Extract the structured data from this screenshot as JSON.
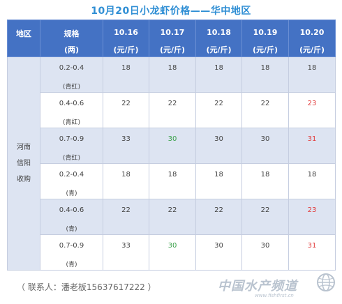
{
  "title": "10月20日小龙虾价格——华中地区",
  "header": {
    "region": "地区",
    "spec_line1": "规格",
    "spec_line2": "(两)",
    "dates": [
      "10.16",
      "10.17",
      "10.18",
      "10.19",
      "10.20"
    ],
    "unit": "(元/斤)"
  },
  "region": [
    "河南",
    "信阳",
    "收购"
  ],
  "rows": [
    {
      "spec": "0.2-0.4",
      "sub": "(青红)",
      "values": [
        "18",
        "18",
        "18",
        "18",
        "18"
      ],
      "colors": [
        "",
        "",
        "",
        "",
        ""
      ]
    },
    {
      "spec": "0.4-0.6",
      "sub": "(青红)",
      "values": [
        "22",
        "22",
        "22",
        "22",
        "23"
      ],
      "colors": [
        "",
        "",
        "",
        "",
        "red"
      ]
    },
    {
      "spec": "0.7-0.9",
      "sub": "(青红)",
      "values": [
        "33",
        "30",
        "30",
        "30",
        "31"
      ],
      "colors": [
        "",
        "green",
        "",
        "",
        "red"
      ]
    },
    {
      "spec": "0.2-0.4",
      "sub": "(青)",
      "values": [
        "18",
        "18",
        "18",
        "18",
        "18"
      ],
      "colors": [
        "",
        "",
        "",
        "",
        ""
      ]
    },
    {
      "spec": "0.4-0.6",
      "sub": "(青)",
      "values": [
        "22",
        "22",
        "22",
        "22",
        "23"
      ],
      "colors": [
        "",
        "",
        "",
        "",
        "red"
      ]
    },
    {
      "spec": "0.7-0.9",
      "sub": "(青)",
      "values": [
        "33",
        "30",
        "30",
        "30",
        "31"
      ],
      "colors": [
        "",
        "green",
        "",
        "",
        "red"
      ]
    }
  ],
  "contact": "（ 联系人：潘老板15637617222 ）",
  "watermark": {
    "text": "中国水产频道",
    "url": "www.fishfirst.cn"
  },
  "color_map": {
    "green": "#3aa14a",
    "red": "#e23a3a"
  },
  "icons": {
    "watermark_logo": "globe-icon"
  }
}
